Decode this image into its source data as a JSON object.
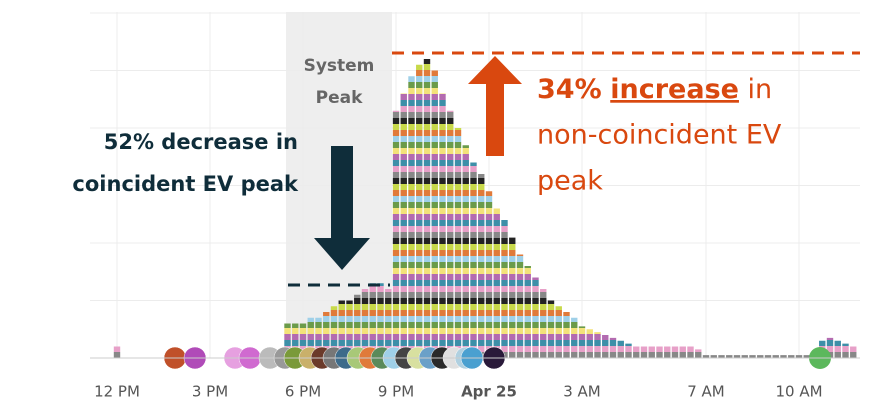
{
  "chart_data": {
    "type": "bar",
    "x": [
      0,
      5.5,
      5.75,
      6,
      6.25,
      6.5,
      6.75,
      7,
      7.25,
      7.5,
      7.75,
      8,
      8.25,
      8.5,
      8.75,
      9,
      9.25,
      9.5,
      9.75,
      10,
      10.25,
      10.5,
      10.75,
      11,
      11.25,
      11.5,
      11.75,
      12,
      12.25,
      12.5,
      12.75,
      13,
      13.25,
      13.5,
      13.75,
      14,
      14.25,
      14.5,
      14.75,
      15,
      15.25,
      15.5,
      15.75,
      16,
      16.25,
      16.5,
      16.75,
      17,
      17.25,
      17.5,
      17.75,
      18,
      18.25,
      18.5,
      18.75,
      19,
      19.25,
      19.5,
      19.75,
      20,
      20.25,
      20.5,
      20.75,
      21,
      21.25,
      21.5,
      21.75,
      22,
      22.25,
      22.5,
      22.75,
      23,
      23.25,
      23.5,
      23.75
    ],
    "values": [
      0.2,
      0.6,
      0.6,
      0.6,
      0.7,
      0.7,
      0.8,
      0.9,
      1.0,
      1.0,
      1.1,
      1.2,
      1.3,
      1.3,
      1.2,
      4.3,
      4.6,
      4.9,
      5.1,
      5.2,
      5.0,
      4.6,
      4.3,
      4.0,
      3.7,
      3.4,
      3.2,
      2.9,
      2.6,
      2.4,
      2.1,
      1.8,
      1.6,
      1.4,
      1.2,
      1.0,
      0.9,
      0.8,
      0.7,
      0.55,
      0.5,
      0.45,
      0.4,
      0.35,
      0.3,
      0.25,
      0.2,
      0.2,
      0.2,
      0.2,
      0.2,
      0.2,
      0.2,
      0.2,
      0.15,
      0.05,
      0.05,
      0.05,
      0.05,
      0.05,
      0.05,
      0.05,
      0.05,
      0.05,
      0.05,
      0.05,
      0.05,
      0.05,
      0.05,
      0.05,
      0.3,
      0.35,
      0.3,
      0.25,
      0.2
    ],
    "xlim": [
      -1,
      24
    ],
    "xticks": [
      {
        "value": 0,
        "label": "12 PM"
      },
      {
        "value": 3,
        "label": "3 PM"
      },
      {
        "value": 6,
        "label": "6 PM"
      },
      {
        "value": 9,
        "label": "9 PM"
      },
      {
        "value": 12,
        "label": "Apr 25"
      },
      {
        "value": 15,
        "label": "3 AM"
      },
      {
        "value": 19,
        "label": "7 AM"
      },
      {
        "value": 22,
        "label": "10 AM"
      }
    ],
    "ylim": [
      0,
      6.1
    ],
    "yticks": [
      1,
      2,
      3,
      4,
      5,
      6
    ],
    "grid": true,
    "annotations": {
      "system_peak": [
        "System",
        "Peak"
      ],
      "decrease": [
        "52% decrease in",
        "coincident EV peak"
      ],
      "increase": {
        "pct": "34%",
        "word": "increase",
        "rest": "in",
        "lines": [
          "non-coincident EV",
          "peak"
        ]
      }
    }
  }
}
